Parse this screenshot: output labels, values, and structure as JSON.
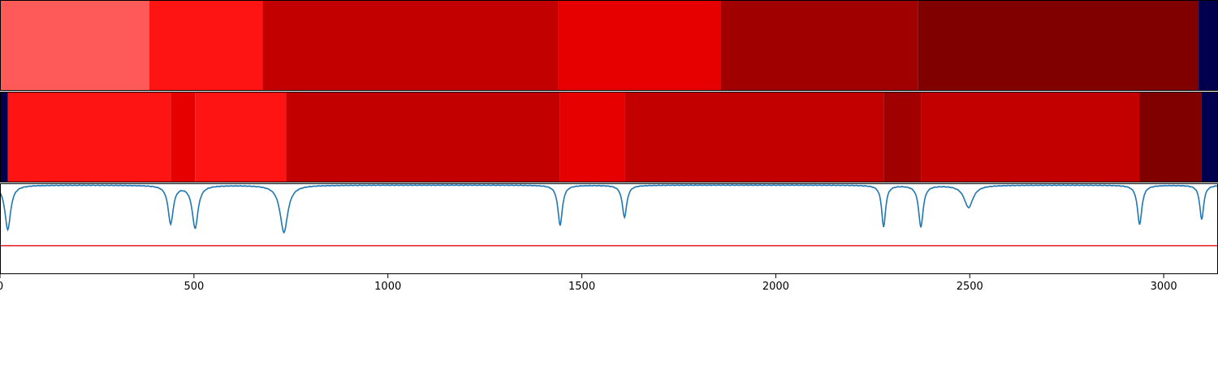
{
  "chart_data": {
    "type": "heatmap",
    "x_range": [
      0,
      3140
    ],
    "x_ticks": [
      "0",
      "500",
      "1000",
      "1500",
      "2000",
      "2500",
      "3000"
    ],
    "x_tick_values": [
      0,
      500,
      1000,
      1500,
      2000,
      2500,
      3000
    ],
    "colors": {
      "background": "#00004f",
      "line": "#1f77b4",
      "threshold": "#e41a1c"
    },
    "tracks": [
      {
        "segments": [
          {
            "start": 0,
            "end": 385,
            "color": "#ff5a5a"
          },
          {
            "start": 385,
            "end": 677,
            "color": "#ff1414"
          },
          {
            "start": 677,
            "end": 1440,
            "color": "#c20000"
          },
          {
            "start": 1440,
            "end": 1858,
            "color": "#e60000"
          },
          {
            "start": 1858,
            "end": 2366,
            "color": "#a00000"
          },
          {
            "start": 2366,
            "end": 3090,
            "color": "#800000"
          },
          {
            "start": 3090,
            "end": 3140,
            "color": "#00004f"
          }
        ]
      },
      {
        "segments": [
          {
            "start": 0,
            "end": 20,
            "color": "#00004f"
          },
          {
            "start": 20,
            "end": 440,
            "color": "#ff1414"
          },
          {
            "start": 440,
            "end": 503,
            "color": "#e60000"
          },
          {
            "start": 503,
            "end": 738,
            "color": "#ff1414"
          },
          {
            "start": 738,
            "end": 1444,
            "color": "#c20000"
          },
          {
            "start": 1444,
            "end": 1610,
            "color": "#e60000"
          },
          {
            "start": 1610,
            "end": 2278,
            "color": "#c20000"
          },
          {
            "start": 2278,
            "end": 2374,
            "color": "#a00000"
          },
          {
            "start": 2374,
            "end": 2938,
            "color": "#c20000"
          },
          {
            "start": 2938,
            "end": 3098,
            "color": "#800000"
          },
          {
            "start": 3098,
            "end": 3140,
            "color": "#00004f"
          }
        ]
      }
    ],
    "signal": {
      "baseline": 1.0,
      "y_range": [
        0,
        1.02
      ],
      "threshold": 0.32,
      "dips": [
        {
          "x": 20,
          "depth": 0.5,
          "width": 9
        },
        {
          "x": 440,
          "depth": 0.43,
          "width": 8
        },
        {
          "x": 503,
          "depth": 0.48,
          "width": 9
        },
        {
          "x": 732,
          "depth": 0.53,
          "width": 12
        },
        {
          "x": 1444,
          "depth": 0.45,
          "width": 7
        },
        {
          "x": 1610,
          "depth": 0.36,
          "width": 7
        },
        {
          "x": 2278,
          "depth": 0.47,
          "width": 6
        },
        {
          "x": 2374,
          "depth": 0.47,
          "width": 7
        },
        {
          "x": 2497,
          "depth": 0.25,
          "width": 14
        },
        {
          "x": 2938,
          "depth": 0.44,
          "width": 7
        },
        {
          "x": 3098,
          "depth": 0.39,
          "width": 6
        }
      ]
    }
  }
}
